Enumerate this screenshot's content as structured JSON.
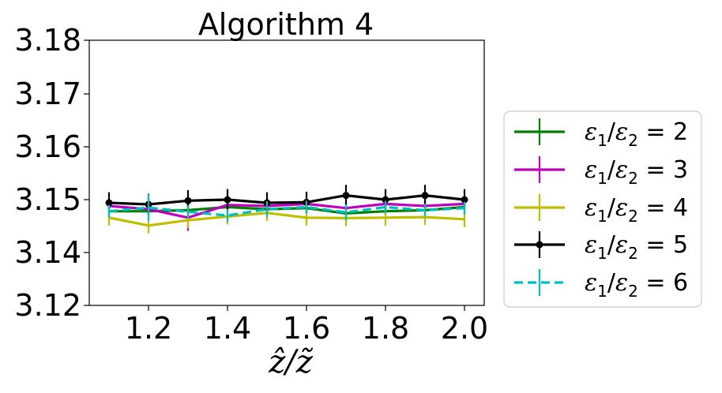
{
  "chart_data": {
    "type": "line",
    "title": "Algorithm 4",
    "xlabel": "ẑ/z̃",
    "ylabel": "",
    "x": [
      1.1,
      1.2,
      1.3,
      1.4,
      1.5,
      1.6,
      1.7,
      1.8,
      1.9,
      2.0
    ],
    "xticks": [
      1.2,
      1.4,
      1.6,
      1.8,
      2.0
    ],
    "xtick_labels": [
      "1.2",
      "1.4",
      "1.6",
      "1.8",
      "2.0"
    ],
    "xlim": [
      1.05,
      2.05
    ],
    "yticks": [
      3.12,
      3.14,
      3.15,
      3.16,
      3.17,
      3.18
    ],
    "ytick_labels": [
      "3.12",
      "3.14",
      "3.15",
      "3.16",
      "3.17",
      "3.18"
    ],
    "ylim": [
      3.12,
      3.18
    ],
    "grid": false,
    "legend_position": "right",
    "series": [
      {
        "name": "ε1/ε2 = 2",
        "legend_ratio": "2",
        "color": "#008000",
        "dashed": false,
        "marker": "none",
        "values": [
          3.1478,
          3.1478,
          3.148,
          3.1486,
          3.1482,
          3.1484,
          3.1474,
          3.1478,
          3.148,
          3.1486
        ],
        "errors": [
          0.0008,
          0.0008,
          0.0008,
          0.0008,
          0.0008,
          0.0008,
          0.0008,
          0.0008,
          0.0008,
          0.0008
        ]
      },
      {
        "name": "ε1/ε2 = 3",
        "legend_ratio": "3",
        "color": "#bf00bf",
        "dashed": false,
        "marker": "none",
        "values": [
          3.1488,
          3.1482,
          3.1466,
          3.149,
          3.1488,
          3.1492,
          3.1484,
          3.1492,
          3.1488,
          3.1492
        ],
        "errors": [
          0.001,
          0.001,
          0.0025,
          0.001,
          0.001,
          0.001,
          0.001,
          0.001,
          0.001,
          0.001
        ]
      },
      {
        "name": "ε1/ε2 = 4",
        "legend_ratio": "4",
        "color": "#bfbf00",
        "dashed": false,
        "marker": "none",
        "values": [
          3.1466,
          3.1451,
          3.1461,
          3.1468,
          3.1475,
          3.1466,
          3.1465,
          3.1466,
          3.1467,
          3.1463
        ],
        "errors": [
          0.0015,
          0.0015,
          0.0015,
          0.0015,
          0.0015,
          0.0015,
          0.0015,
          0.0015,
          0.0015,
          0.0015
        ]
      },
      {
        "name": "ε1/ε2 = 5",
        "legend_ratio": "5",
        "color": "#000000",
        "dashed": false,
        "marker": "circle",
        "values": [
          3.1494,
          3.1491,
          3.1498,
          3.15,
          3.1494,
          3.1495,
          3.1508,
          3.15,
          3.1508,
          3.15
        ],
        "errors": [
          0.002,
          0.002,
          0.002,
          0.002,
          0.002,
          0.002,
          0.002,
          0.002,
          0.002,
          0.002
        ]
      },
      {
        "name": "ε1/ε2 = 6",
        "legend_ratio": "6",
        "color": "#00bfbf",
        "dashed": true,
        "marker": "none",
        "values": [
          3.1478,
          3.1485,
          3.1477,
          3.147,
          3.1482,
          3.1486,
          3.1476,
          3.1486,
          3.148,
          3.1484
        ],
        "errors": [
          0.0012,
          0.0025,
          0.0012,
          0.0012,
          0.0015,
          0.0012,
          0.0015,
          0.0012,
          0.0012,
          0.0012
        ]
      }
    ]
  }
}
